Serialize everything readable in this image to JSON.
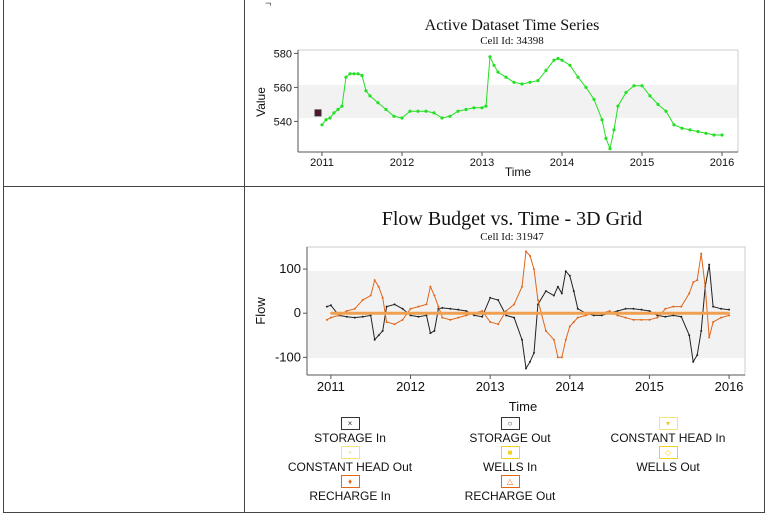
{
  "charts": {
    "top": {
      "title": "Active Dataset Time Series",
      "subtitle": "Cell Id: 34398",
      "xlabel": "Time",
      "ylabel": "Value",
      "series_color": "#22e022",
      "marker_color": "#5a1030"
    },
    "bottom": {
      "title": "Flow Budget vs. Time - 3D Grid",
      "subtitle": "Cell Id: 31947",
      "xlabel": "Time",
      "ylabel": "Flow"
    }
  },
  "legend": [
    {
      "label": "STORAGE In",
      "symbol": "×",
      "stroke": "#333333",
      "fill": "#ffffff"
    },
    {
      "label": "STORAGE Out",
      "symbol": "○",
      "stroke": "#333333",
      "fill": "#ffffff"
    },
    {
      "label": "CONSTANT HEAD In",
      "symbol": "▾",
      "stroke": "#f5e27a",
      "fill": "#ffffff"
    },
    {
      "label": "CONSTANT HEAD Out",
      "symbol": "▫",
      "stroke": "#f5e27a",
      "fill": "#ffffff"
    },
    {
      "label": "WELLS In",
      "symbol": "■",
      "stroke": "#f5d21a",
      "fill": "#ffffff"
    },
    {
      "label": "WELLS Out",
      "symbol": "◇",
      "stroke": "#f5d21a",
      "fill": "#ffffff"
    },
    {
      "label": "RECHARGE In",
      "symbol": "♦",
      "stroke": "#e0661a",
      "fill": "#ffffff"
    },
    {
      "label": "RECHARGE Out",
      "symbol": "△",
      "stroke": "#e0661a",
      "fill": "#ffffff"
    }
  ],
  "chart_data": [
    {
      "type": "line",
      "title": "Active Dataset Time Series",
      "subtitle": "Cell Id: 34398",
      "xlabel": "Time",
      "ylabel": "Value",
      "xlim": [
        2010.7,
        2016.2
      ],
      "ylim": [
        522,
        582
      ],
      "xticks": [
        2011,
        2012,
        2013,
        2014,
        2015,
        2016
      ],
      "yticks": [
        540,
        560,
        580
      ],
      "grid": false,
      "series": [
        {
          "color": "#22e022",
          "x": [
            2011.0,
            2011.05,
            2011.1,
            2011.15,
            2011.2,
            2011.25,
            2011.3,
            2011.35,
            2011.4,
            2011.45,
            2011.5,
            2011.55,
            2011.6,
            2011.7,
            2011.8,
            2011.9,
            2012.0,
            2012.1,
            2012.2,
            2012.3,
            2012.4,
            2012.5,
            2012.6,
            2012.7,
            2012.8,
            2012.9,
            2013.0,
            2013.05,
            2013.1,
            2013.15,
            2013.2,
            2013.3,
            2013.4,
            2013.5,
            2013.6,
            2013.7,
            2013.8,
            2013.9,
            2013.95,
            2014.0,
            2014.1,
            2014.2,
            2014.3,
            2014.4,
            2014.5,
            2014.55,
            2014.6,
            2014.65,
            2014.7,
            2014.8,
            2014.9,
            2015.0,
            2015.1,
            2015.2,
            2015.3,
            2015.4,
            2015.5,
            2015.6,
            2015.7,
            2015.8,
            2015.9,
            2016.0
          ],
          "y": [
            538,
            541,
            542,
            545,
            547,
            549,
            566,
            568,
            568,
            568,
            567,
            558,
            555,
            551,
            547,
            543,
            542,
            546,
            546,
            546,
            545,
            542,
            543,
            546,
            547,
            548,
            548,
            549,
            578,
            573,
            569,
            566,
            563,
            562,
            563,
            564,
            570,
            576,
            577,
            576,
            573,
            566,
            560,
            553,
            541,
            530,
            524,
            535,
            549,
            557,
            561,
            561,
            555,
            550,
            546,
            538,
            536,
            535,
            534,
            533,
            532,
            532
          ]
        }
      ],
      "markers": [
        {
          "x": 2010.95,
          "y": 545
        }
      ]
    },
    {
      "type": "line",
      "title": "Flow Budget vs. Time - 3D Grid",
      "subtitle": "Cell Id: 31947",
      "xlabel": "Time",
      "ylabel": "Flow",
      "xlim": [
        2010.7,
        2016.2
      ],
      "ylim": [
        -140,
        150
      ],
      "xticks": [
        2011,
        2012,
        2013,
        2014,
        2015,
        2016
      ],
      "yticks": [
        -100,
        0,
        100
      ],
      "grid": false,
      "legend_position": "bottom",
      "series": [
        {
          "name": "STORAGE In",
          "color": "#222222",
          "x": [
            2010.95,
            2011.0,
            2011.1,
            2011.2,
            2011.3,
            2011.4,
            2011.5,
            2011.55,
            2011.6,
            2011.65,
            2011.7,
            2011.8,
            2011.9,
            2012.0,
            2012.1,
            2012.2,
            2012.25,
            2012.3,
            2012.35,
            2012.4,
            2012.5,
            2012.6,
            2012.7,
            2012.8,
            2012.9,
            2013.0,
            2013.1,
            2013.2,
            2013.3,
            2013.4,
            2013.45,
            2013.5,
            2013.55,
            2013.6,
            2013.7,
            2013.8,
            2013.85,
            2013.9,
            2013.95,
            2014.0,
            2014.05,
            2014.1,
            2014.2,
            2014.3,
            2014.4,
            2014.5,
            2014.6,
            2014.7,
            2014.8,
            2014.9,
            2015.0,
            2015.1,
            2015.2,
            2015.3,
            2015.4,
            2015.5,
            2015.55,
            2015.6,
            2015.65,
            2015.7,
            2015.75,
            2015.8,
            2015.9,
            2016.0
          ],
          "y": [
            15,
            18,
            -5,
            -8,
            -10,
            -8,
            -5,
            -60,
            -50,
            -40,
            15,
            20,
            10,
            -5,
            -8,
            -5,
            -45,
            -40,
            10,
            12,
            10,
            8,
            5,
            -5,
            -8,
            35,
            30,
            -5,
            -10,
            -60,
            -125,
            -110,
            -90,
            20,
            50,
            40,
            60,
            45,
            95,
            85,
            50,
            10,
            0,
            -5,
            -5,
            0,
            5,
            10,
            10,
            8,
            5,
            -5,
            -8,
            -5,
            -8,
            -50,
            -110,
            -95,
            -40,
            60,
            110,
            15,
            10,
            8
          ]
        },
        {
          "name": "RECHARGE Out",
          "color": "#e0661a",
          "x": [
            2010.95,
            2011.0,
            2011.1,
            2011.2,
            2011.3,
            2011.4,
            2011.5,
            2011.55,
            2011.6,
            2011.65,
            2011.7,
            2011.8,
            2011.9,
            2012.0,
            2012.1,
            2012.2,
            2012.25,
            2012.3,
            2012.35,
            2012.4,
            2012.5,
            2012.6,
            2012.7,
            2012.8,
            2012.9,
            2013.0,
            2013.1,
            2013.2,
            2013.3,
            2013.4,
            2013.45,
            2013.5,
            2013.55,
            2013.6,
            2013.7,
            2013.8,
            2013.85,
            2013.9,
            2013.95,
            2014.0,
            2014.05,
            2014.1,
            2014.2,
            2014.3,
            2014.4,
            2014.5,
            2014.6,
            2014.7,
            2014.8,
            2014.9,
            2015.0,
            2015.1,
            2015.2,
            2015.3,
            2015.4,
            2015.5,
            2015.55,
            2015.6,
            2015.65,
            2015.7,
            2015.75,
            2015.8,
            2015.9,
            2016.0
          ],
          "y": [
            -15,
            -10,
            -5,
            5,
            10,
            30,
            40,
            75,
            60,
            35,
            -20,
            -25,
            -15,
            10,
            15,
            20,
            60,
            40,
            15,
            -10,
            -15,
            -10,
            -5,
            0,
            5,
            -20,
            -25,
            5,
            20,
            60,
            140,
            130,
            100,
            30,
            -40,
            -60,
            -100,
            -100,
            -60,
            -30,
            -20,
            -10,
            -5,
            0,
            0,
            5,
            -5,
            -10,
            -15,
            -15,
            -15,
            -10,
            10,
            15,
            15,
            45,
            70,
            75,
            135,
            60,
            -55,
            -20,
            -10,
            -5
          ]
        },
        {
          "name": "RECHARGE In",
          "color": "#f0a050",
          "x": [
            2011.0,
            2016.0
          ],
          "y": [
            0,
            0
          ]
        }
      ]
    }
  ]
}
